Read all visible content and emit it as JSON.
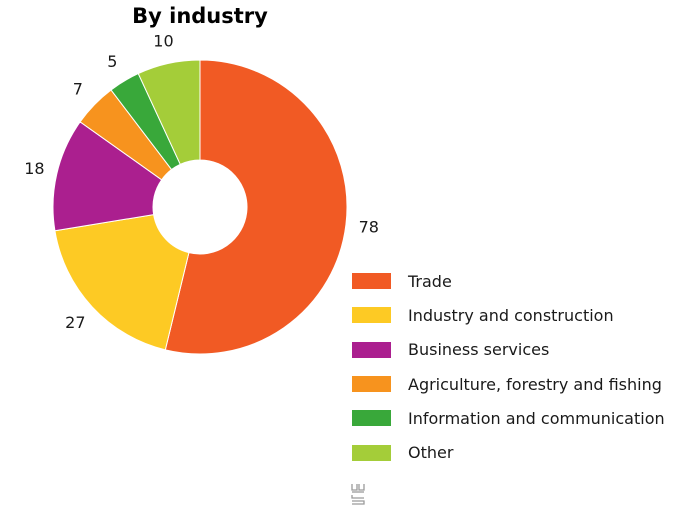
{
  "chart_data": {
    "type": "pie",
    "donut": true,
    "title": "By industry",
    "categories": [
      "Trade",
      "Industry and construction",
      "Business services",
      "Agriculture, forestry and fishing",
      "Information and communication",
      "Other"
    ],
    "values": [
      78,
      27,
      18,
      7,
      5,
      10
    ],
    "colors": [
      "#f15a24",
      "#fdca24",
      "#ab1f8f",
      "#f7931e",
      "#39a83a",
      "#a4cd39"
    ],
    "legend_position": "right"
  },
  "logo": {
    "icon": "cbs-logo-icon"
  }
}
